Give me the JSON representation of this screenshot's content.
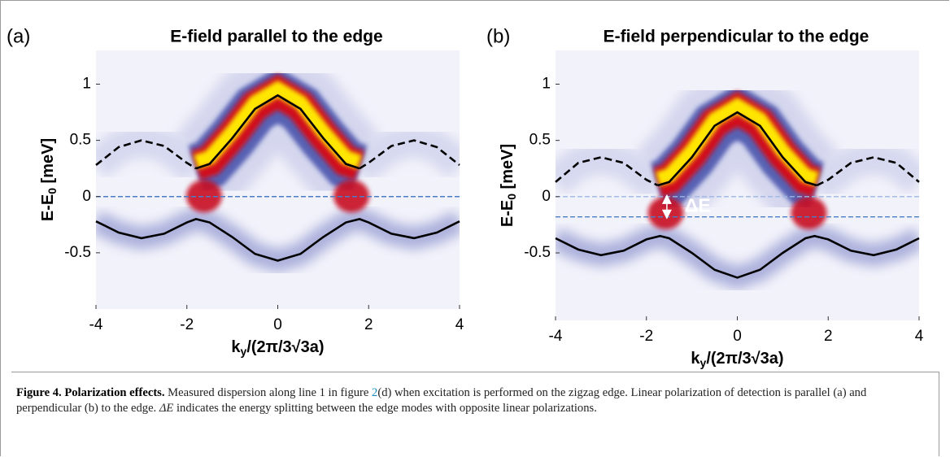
{
  "chart_data": [
    {
      "type": "line",
      "panel_label": "(a)",
      "title": "E-field parallel to the edge",
      "x_label": [
        "k",
        "y",
        "/(2π/3√3a)"
      ],
      "y_label": [
        "E-E",
        "0",
        " [meV]"
      ],
      "xlim": [
        -4,
        4
      ],
      "ylim": [
        -1,
        1.3
      ],
      "xticks": [
        -4,
        -2,
        0,
        2,
        4
      ],
      "yticks": [
        -0.5,
        0,
        0.5,
        1
      ],
      "series": [
        {
          "color": "#000000",
          "style": "solid",
          "x": [
            -1.8,
            -1.5,
            -1,
            -0.5,
            0,
            0.5,
            1,
            1.5,
            1.8
          ],
          "values": [
            0.25,
            0.29,
            0.52,
            0.78,
            0.9,
            0.78,
            0.52,
            0.29,
            0.25
          ]
        },
        {
          "color": "#000000",
          "style": "dashed",
          "x": [
            -4,
            -3.5,
            -3,
            -2.5,
            -2,
            -1.8
          ],
          "values": [
            0.28,
            0.44,
            0.5,
            0.45,
            0.3,
            0.25
          ]
        },
        {
          "color": "#000000",
          "style": "dashed",
          "x": [
            1.8,
            2,
            2.5,
            3,
            3.5,
            4
          ],
          "values": [
            0.25,
            0.3,
            0.45,
            0.5,
            0.44,
            0.28
          ]
        },
        {
          "color": "#000000",
          "style": "solid",
          "x": [
            -4,
            -3.5,
            -3,
            -2.5,
            -2,
            -1.8,
            -1.5,
            -1,
            -0.5,
            0,
            0.5,
            1,
            1.5,
            1.8,
            2,
            2.5,
            3,
            3.5,
            4
          ],
          "values": [
            -0.22,
            -0.32,
            -0.37,
            -0.33,
            -0.23,
            -0.2,
            -0.23,
            -0.36,
            -0.51,
            -0.57,
            -0.51,
            -0.36,
            -0.23,
            -0.2,
            -0.23,
            -0.33,
            -0.37,
            -0.32,
            -0.22
          ]
        },
        {
          "color": "#4a7cc8",
          "style": "dashed",
          "x": [
            -4,
            4
          ],
          "values": [
            0,
            0
          ]
        }
      ]
    },
    {
      "type": "line",
      "panel_label": "(b)",
      "title": "E-field perpendicular to the edge",
      "x_label": [
        "k",
        "y",
        "/(2π/3√3a)"
      ],
      "y_label": [
        "E-E",
        "0",
        " [meV]"
      ],
      "xlim": [
        -4,
        4
      ],
      "ylim": [
        -1.1,
        1.3
      ],
      "xticks": [
        -4,
        -2,
        0,
        2,
        4
      ],
      "yticks": [
        -0.5,
        0,
        0.5,
        1
      ],
      "annotation": "ΔE",
      "series": [
        {
          "color": "#000000",
          "style": "solid",
          "x": [
            -1.75,
            -1.5,
            -1,
            -0.5,
            0,
            0.5,
            1,
            1.5,
            1.75
          ],
          "values": [
            0.1,
            0.13,
            0.35,
            0.63,
            0.75,
            0.63,
            0.35,
            0.13,
            0.1
          ]
        },
        {
          "color": "#000000",
          "style": "dashed",
          "x": [
            -4,
            -3.5,
            -3,
            -2.5,
            -2,
            -1.75
          ],
          "values": [
            0.13,
            0.3,
            0.35,
            0.3,
            0.15,
            0.1
          ]
        },
        {
          "color": "#000000",
          "style": "dashed",
          "x": [
            1.75,
            2,
            2.5,
            3,
            3.5,
            4
          ],
          "values": [
            0.1,
            0.15,
            0.3,
            0.35,
            0.3,
            0.13
          ]
        },
        {
          "color": "#000000",
          "style": "solid",
          "x": [
            -4,
            -3.5,
            -3,
            -2.5,
            -2,
            -1.7,
            -1.5,
            -1,
            -0.5,
            0,
            0.5,
            1,
            1.5,
            1.7,
            2,
            2.5,
            3,
            3.5,
            4
          ],
          "values": [
            -0.37,
            -0.47,
            -0.52,
            -0.48,
            -0.38,
            -0.35,
            -0.37,
            -0.5,
            -0.65,
            -0.72,
            -0.65,
            -0.5,
            -0.37,
            -0.35,
            -0.38,
            -0.48,
            -0.52,
            -0.47,
            -0.37
          ]
        },
        {
          "color": "#9bb6e2",
          "style": "dashed",
          "x": [
            -4,
            4
          ],
          "values": [
            0,
            0
          ]
        },
        {
          "color": "#4a7cc8",
          "style": "dashed",
          "x": [
            -4,
            4
          ],
          "values": [
            -0.18,
            -0.18
          ]
        }
      ]
    }
  ],
  "caption": {
    "label": "Figure 4. Polarization effects.",
    "text_1": " Measured dispersion along line 1 in figure ",
    "ref": "2",
    "text_2": "(d) when excitation is performed on the zigzag edge. Linear polarization of detection is parallel (a) and perpendicular (b) to the edge. ",
    "symbol": "ΔE",
    "text_3": " indicates the energy splitting between the edge modes with opposite linear polarizations."
  }
}
